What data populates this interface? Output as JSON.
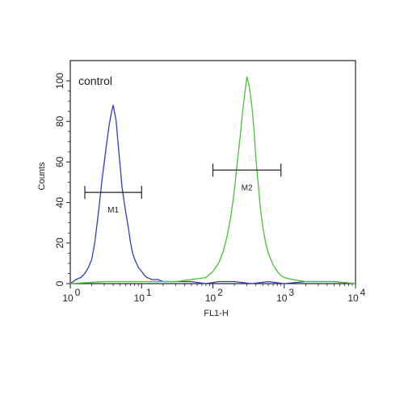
{
  "chart_data": {
    "type": "line",
    "title": "",
    "annotation": "control",
    "xlabel": "FL1-H",
    "ylabel": "Counts",
    "xscale": "log",
    "xlim": [
      1,
      10000
    ],
    "ylim": [
      0,
      110
    ],
    "grid": false,
    "x_ticks": [
      {
        "value": 1,
        "base": "10",
        "exp": "0"
      },
      {
        "value": 10,
        "base": "10",
        "exp": "1"
      },
      {
        "value": 100,
        "base": "10",
        "exp": "2"
      },
      {
        "value": 1000,
        "base": "10",
        "exp": "3"
      },
      {
        "value": 10000,
        "base": "10",
        "exp": "4"
      }
    ],
    "y_ticks": [
      {
        "value": 0,
        "label": "0"
      },
      {
        "value": 20,
        "label": "20"
      },
      {
        "value": 40,
        "label": "40"
      },
      {
        "value": 60,
        "label": "60"
      },
      {
        "value": 80,
        "label": "80"
      },
      {
        "value": 100,
        "label": "100"
      }
    ],
    "series": [
      {
        "color": "#2a3fbf",
        "x": [
          1,
          1.2,
          1.4,
          1.6,
          1.8,
          2.0,
          2.2,
          2.5,
          2.8,
          3.0,
          3.2,
          3.5,
          3.8,
          4.0,
          4.2,
          4.4,
          4.6,
          4.8,
          5.0,
          5.3,
          5.6,
          6.0,
          6.5,
          7.0,
          7.5,
          8.0,
          9.0,
          10,
          11,
          12,
          14,
          17,
          20,
          30,
          50,
          80,
          120,
          200,
          350,
          600,
          1000,
          2000,
          5000,
          10000
        ],
        "y": [
          0,
          2,
          3,
          5,
          8,
          12,
          20,
          36,
          52,
          60,
          68,
          78,
          85,
          88,
          84,
          80,
          72,
          65,
          58,
          48,
          42,
          35,
          28,
          20,
          15,
          12,
          8,
          6,
          4,
          3,
          2,
          2,
          1,
          1,
          1,
          0,
          1,
          1,
          0,
          1,
          0,
          1,
          1,
          0
        ]
      },
      {
        "color": "#46c236",
        "x": [
          1,
          3,
          10,
          30,
          50,
          80,
          100,
          120,
          140,
          160,
          180,
          200,
          220,
          240,
          260,
          280,
          300,
          320,
          340,
          360,
          380,
          400,
          430,
          460,
          500,
          550,
          600,
          700,
          800,
          900,
          1000,
          1300,
          2000,
          5000,
          10000
        ],
        "y": [
          0,
          1,
          1,
          1,
          2,
          3,
          6,
          10,
          16,
          24,
          34,
          46,
          60,
          72,
          84,
          94,
          102,
          98,
          92,
          84,
          74,
          62,
          50,
          38,
          28,
          20,
          15,
          9,
          6,
          4,
          3,
          2,
          1,
          1,
          0
        ]
      }
    ],
    "markers": [
      {
        "label": "M1",
        "x_start": 1.6,
        "x_end": 10,
        "y": 45
      },
      {
        "label": "M2",
        "x_start": 100,
        "x_end": 900,
        "y": 56
      }
    ]
  }
}
